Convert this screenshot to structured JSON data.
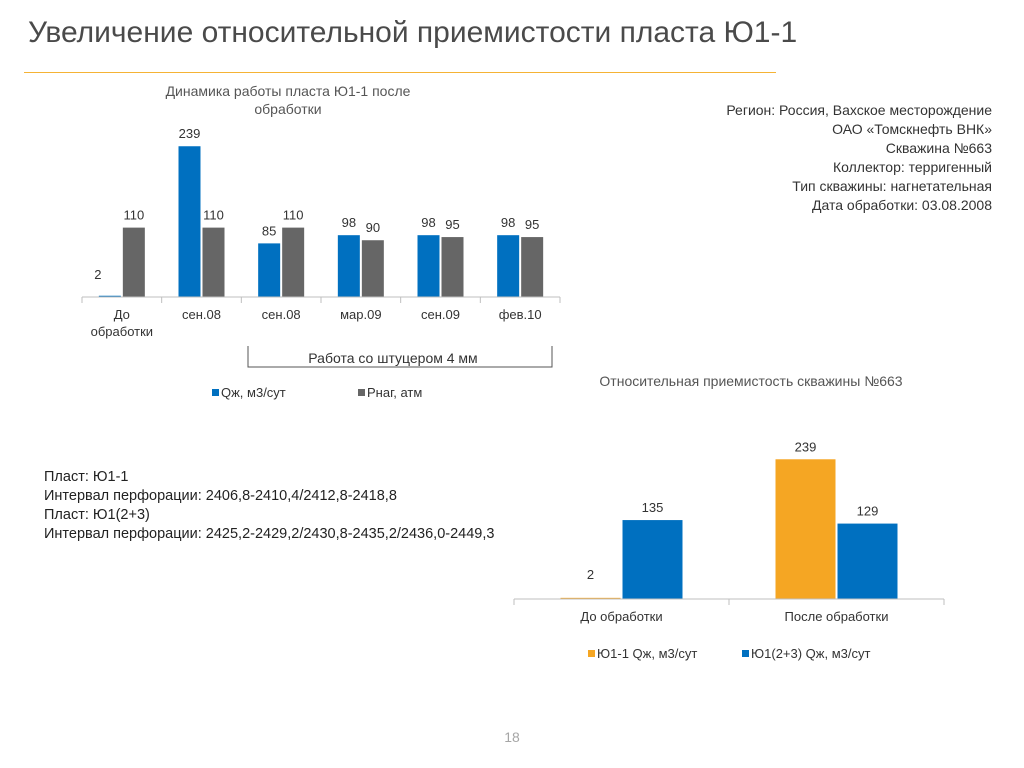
{
  "slide": {
    "title": "Увеличение относительной приемистости пласта Ю1-1",
    "page_number": "18"
  },
  "info": {
    "lines": [
      "Регион: Россия, Вахское месторождение",
      "ОАО «Томскнефть ВНК»",
      "Скважина  №663",
      "Коллектор: терригенный",
      "Тип скважины: нагнетательная",
      "Дата обработки: 03.08.2008"
    ]
  },
  "layers": {
    "lines": [
      "Пласт: Ю1-1",
      "Интервал перфорации: 2406,8-2410,4/2412,8-2418,8",
      "Пласт: Ю1(2+3)",
      "Интервал перфорации:  2425,2-2429,2/2430,8-2435,2/2436,0-2449,3"
    ]
  },
  "colors": {
    "blue": "#0070c0",
    "gray": "#666666",
    "orange": "#f5a623",
    "accent_rule": "#f5b335",
    "axis": "#bfbfbf"
  },
  "chart_data": [
    {
      "type": "bar",
      "title_lines": [
        "Динамика работы пласта Ю1-1 после",
        "обработки"
      ],
      "categories": [
        [
          "До",
          "обработки"
        ],
        [
          "сен.08"
        ],
        [
          "сен.08"
        ],
        [
          "мар.09"
        ],
        [
          "сен.09"
        ],
        [
          "фев.10"
        ]
      ],
      "series": [
        {
          "name": "Qж, м3/сут",
          "color": "#0070c0",
          "values": [
            2,
            239,
            85,
            98,
            98,
            98
          ]
        },
        {
          "name": "Pнаг, атм",
          "color": "#666666",
          "values": [
            110,
            110,
            110,
            90,
            95,
            95
          ]
        }
      ],
      "ylim": [
        0,
        260
      ],
      "annotation": "Работа со штуцером 4 мм",
      "legend_position": "bottom"
    },
    {
      "type": "bar",
      "title": "Относительная приемистость скважины №663",
      "categories": [
        "До обработки",
        "После обработки"
      ],
      "series": [
        {
          "name": "Ю1-1 Qж, м3/сут",
          "color": "#f5a623",
          "values": [
            2,
            239
          ]
        },
        {
          "name": "Ю1(2+3) Qж, м3/сут",
          "color": "#0070c0",
          "values": [
            135,
            129
          ]
        }
      ],
      "ylim": [
        0,
        260
      ],
      "legend_position": "bottom"
    }
  ]
}
